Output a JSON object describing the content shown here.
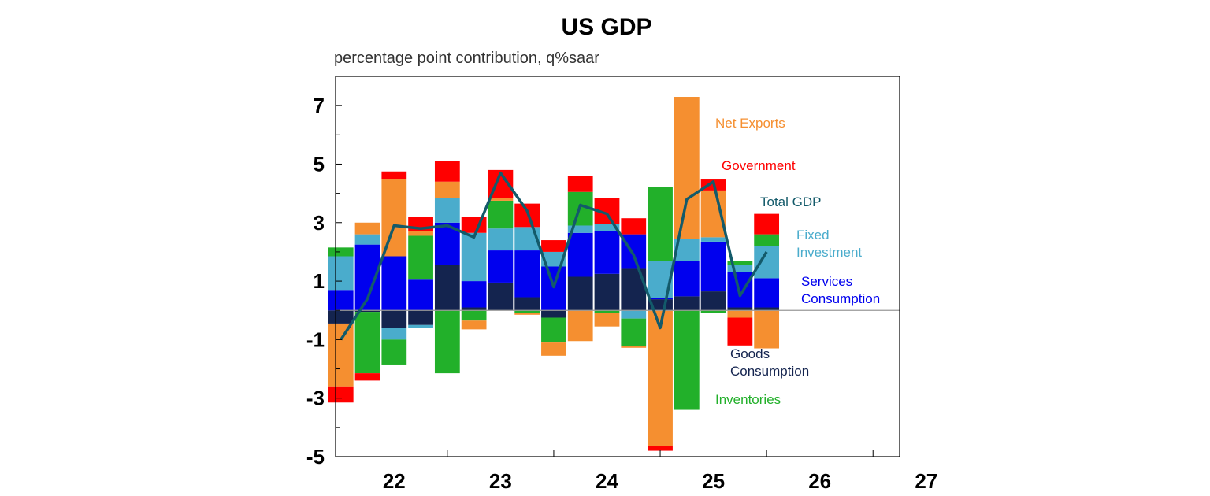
{
  "chart_data": {
    "type": "bar",
    "stacked": true,
    "title": "US GDP",
    "subtitle": "percentage point contribution, q%saar",
    "ylim": [
      -5,
      8
    ],
    "yticks": [
      7,
      5,
      3,
      1,
      -1,
      -3,
      -5
    ],
    "xlim": [
      2021.95,
      2027.25
    ],
    "xticks": [
      {
        "label": "22",
        "pos": 2022.5
      },
      {
        "label": "23",
        "pos": 2023.5
      },
      {
        "label": "24",
        "pos": 2024.5
      },
      {
        "label": "25",
        "pos": 2025.5
      },
      {
        "label": "26",
        "pos": 2026.5
      },
      {
        "label": "27",
        "pos": 2027.5
      }
    ],
    "year_boundaries": [
      2023,
      2024,
      2025,
      2026,
      2027
    ],
    "quarters": [
      "2022 Q1",
      "2022 Q2",
      "2022 Q3",
      "2022 Q4",
      "2023 Q1",
      "2023 Q2",
      "2023 Q3",
      "2023 Q4",
      "2024 Q1",
      "2024 Q2",
      "2024 Q3",
      "2024 Q4",
      "2025 Q1",
      "2025 Q2",
      "2025 Q3",
      "2025 Q4",
      "2026 Q1"
    ],
    "x": [
      2022.0,
      2022.25,
      2022.5,
      2022.75,
      2023.0,
      2023.25,
      2023.5,
      2023.75,
      2024.0,
      2024.25,
      2024.5,
      2024.75,
      2025.0,
      2025.25,
      2025.5,
      2025.75,
      2026.0
    ],
    "series": [
      {
        "name": "Goods Consumption",
        "color": "#14244f",
        "values": [
          -0.45,
          -0.05,
          -0.6,
          -0.5,
          1.55,
          0.1,
          0.95,
          0.45,
          -0.25,
          1.15,
          1.25,
          1.42,
          0.38,
          0.48,
          0.65,
          0.1,
          0.1
        ]
      },
      {
        "name": "Services Consumption",
        "color": "#0000ee",
        "values": [
          0.7,
          2.25,
          1.85,
          1.05,
          1.45,
          0.9,
          1.1,
          1.6,
          1.5,
          1.5,
          1.45,
          1.18,
          0.05,
          1.22,
          1.7,
          1.2,
          1.0
        ]
      },
      {
        "name": "Fixed Investment",
        "color": "#4aaccc",
        "values": [
          1.15,
          0.35,
          -0.4,
          -0.1,
          0.85,
          1.65,
          0.75,
          0.8,
          0.5,
          0.25,
          0.25,
          -0.28,
          1.25,
          0.75,
          0.15,
          0.25,
          1.1
        ]
      },
      {
        "name": "Inventories",
        "color": "#22b02a",
        "values": [
          0.3,
          -2.1,
          -0.85,
          1.5,
          -2.15,
          -0.35,
          0.95,
          -0.1,
          -0.85,
          1.15,
          -0.1,
          -0.95,
          2.55,
          -3.4,
          -0.1,
          0.15,
          0.4
        ]
      },
      {
        "name": "Net Exports",
        "color": "#f58f30",
        "values": [
          -2.15,
          0.4,
          2.65,
          0.15,
          0.55,
          -0.3,
          0.1,
          -0.05,
          -0.45,
          -1.05,
          -0.45,
          -0.05,
          -4.65,
          4.85,
          1.6,
          -0.25,
          -1.3
        ]
      },
      {
        "name": "Government",
        "color": "#ff0000",
        "values": [
          -0.55,
          -0.25,
          0.25,
          0.5,
          0.7,
          0.55,
          0.95,
          0.8,
          0.4,
          0.55,
          0.9,
          0.55,
          -0.15,
          0.0,
          0.4,
          -0.95,
          0.7
        ]
      }
    ],
    "line": {
      "name": "Total GDP",
      "color": "#135a6a",
      "values": [
        -1.0,
        0.4,
        2.9,
        2.8,
        2.9,
        2.5,
        4.7,
        3.4,
        0.8,
        3.6,
        3.3,
        1.9,
        -0.6,
        3.8,
        4.4,
        0.5,
        2.0
      ]
    },
    "annotations": [
      {
        "text": "Net Exports",
        "color": "#f58f30"
      },
      {
        "text": "Government",
        "color": "#ff0000"
      },
      {
        "text": "Total GDP",
        "color": "#135a6a"
      },
      {
        "text": "Fixed",
        "color": "#4aaccc"
      },
      {
        "text": "Investment",
        "color": "#4aaccc"
      },
      {
        "text": "Services",
        "color": "#0000ee"
      },
      {
        "text": "Consumption",
        "color": "#0000ee"
      },
      {
        "text": "Goods",
        "color": "#14244f"
      },
      {
        "text": "Consumption",
        "color": "#14244f"
      },
      {
        "text": "Inventories",
        "color": "#22b02a"
      }
    ]
  }
}
